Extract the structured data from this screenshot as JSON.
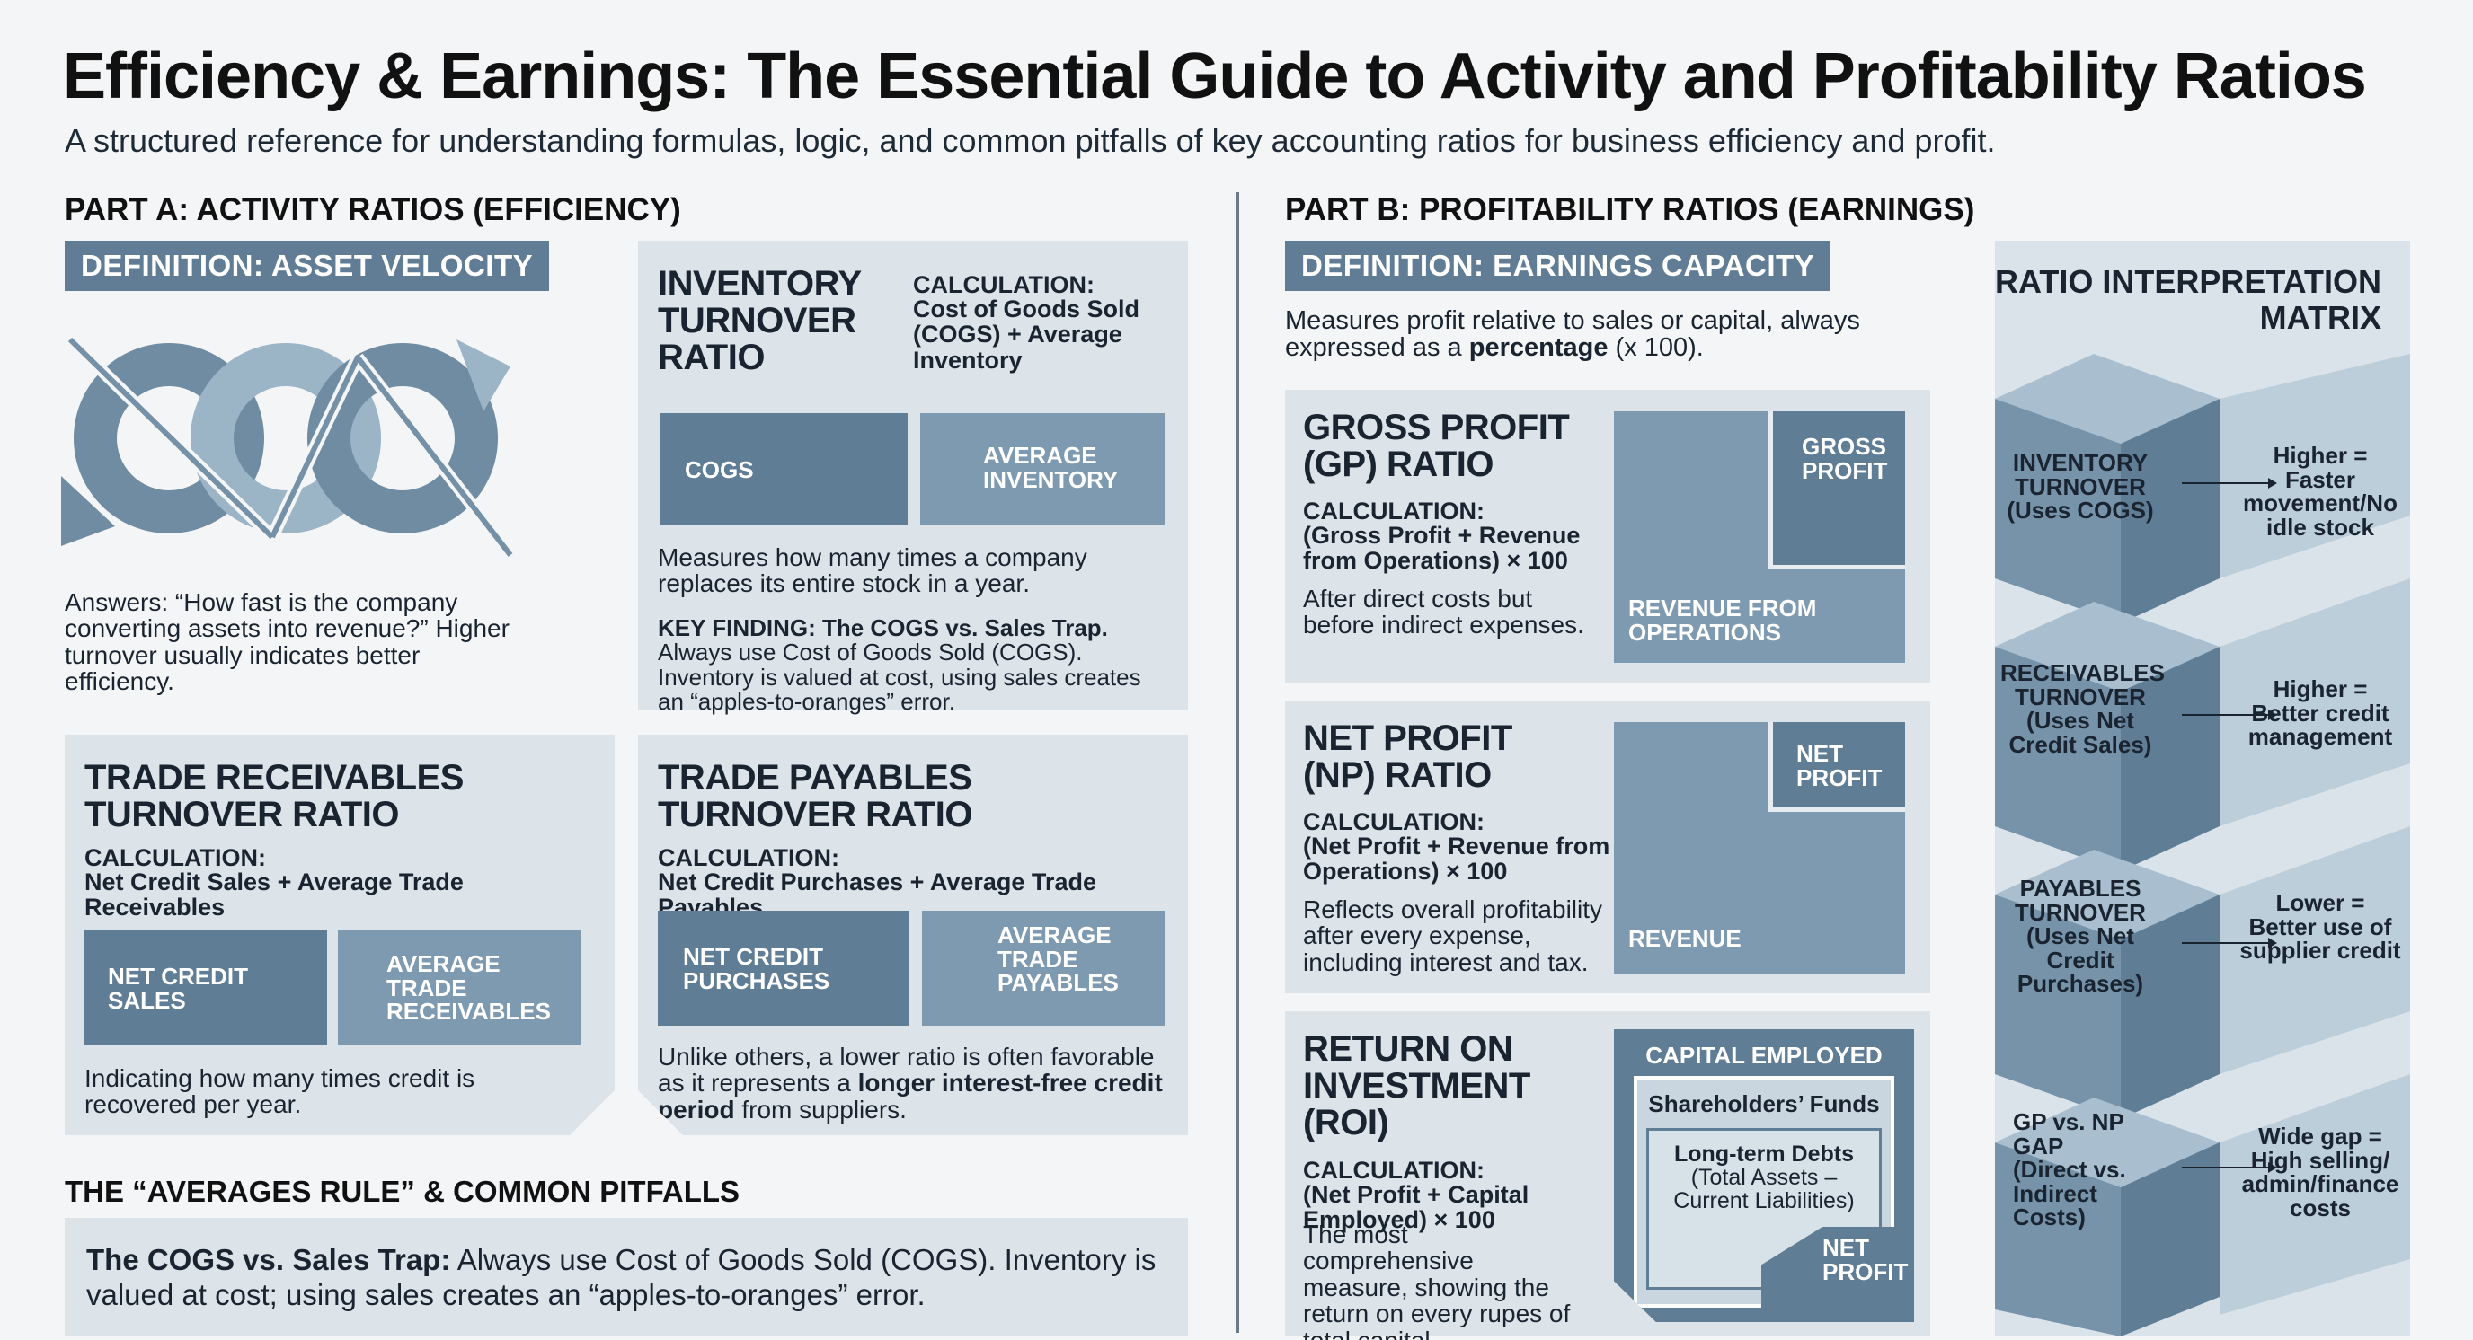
{
  "header": {
    "title": "Efficiency & Earnings: The Essential Guide to Activity and Profitability Ratios",
    "subtitle": "A structured reference for understanding formulas, logic, and common pitfalls of key accounting ratios for business efficiency and profit."
  },
  "part_a": {
    "heading": "PART A: ACTIVITY RATIOS (EFFICIENCY)",
    "definition_badge": "DEFINITION: ASSET VELOCITY",
    "answers_text": "Answers: “How fast is the company converting assets into revenue?” Higher turnover usually indicates better efficiency.",
    "inventory": {
      "title": "INVENTORY TURNOVER RATIO",
      "calc_label": "CALCULATION:",
      "calc_formula": "Cost of Goods Sold (COGS) + Average Inventory",
      "box_left": "COGS",
      "box_right": "AVERAGE INVENTORY",
      "description": "Measures how many times a company replaces its entire stock in a year.",
      "key_finding_bold": "KEY FINDING: The COGS vs. Sales Trap.",
      "key_finding_text": "Always use Cost of Goods Sold (COGS). Inventory is valued at cost, using sales creates an “apples-to-oranges” error."
    },
    "receivables": {
      "title": "TRADE RECEIVABLES TURNOVER RATIO",
      "calc_label": "CALCULATION:",
      "calc_formula": "Net Credit Sales + Average Trade Receivables",
      "box_left": "NET CREDIT SALES",
      "box_right": "AVERAGE TRADE RECEIVABLES",
      "description": "Indicating how many times credit is recovered per year."
    },
    "payables": {
      "title": "TRADE PAYABLES TURNOVER RATIO",
      "calc_label": "CALCULATION:",
      "calc_formula": "Net Credit Purchases + Average Trade Payables",
      "box_left": "NET CREDIT PURCHASES",
      "box_right": "AVERAGE TRADE PAYABLES",
      "description_start": "Unlike others, a lower ratio is often favorable as it represents a",
      "description_bold": "longer interest-free credit period",
      "description_end": "from suppliers."
    },
    "pitfalls": {
      "heading": "THE “AVERAGES RULE” & COMMON PITFALLS",
      "bold": "The COGS vs. Sales Trap:",
      "text": "Always use Cost of Goods Sold (COGS). Inventory is valued at cost; using sales creates an “apples-to-oranges” error."
    }
  },
  "part_b": {
    "heading": "PART B: PROFITABILITY RATIOS (EARNINGS)",
    "definition_badge": "DEFINITION: EARNINGS CAPACITY",
    "definition_text_start": "Measures profit relative to sales or capital, always expressed as a",
    "definition_text_bold": "percentage",
    "definition_text_end": "(x 100).",
    "gross": {
      "title": "GROSS PROFIT (GP) RATIO",
      "calc_label": "CALCULATION:",
      "calc_formula": "(Gross Profit + Revenue from Operations) × 100",
      "description": "After direct costs but before indirect expenses.",
      "inner_box": "GROSS PROFIT",
      "outer_box": "REVENUE FROM OPERATIONS"
    },
    "net": {
      "title": "NET PROFIT (NP) RATIO",
      "calc_label": "CALCULATION:",
      "calc_formula": "(Net Profit + Revenue from Operations) × 100",
      "description": "Reflects overall profitability after every expense, including interest and tax.",
      "inner_box": "NET PROFIT",
      "outer_box": "REVENUE"
    },
    "roi": {
      "title": "RETURN ON INVESTMENT (ROI)",
      "calc_label": "CALCULATION:",
      "calc_formula": "(Net Profit + Capital Employed) × 100",
      "description": "The most comprehensive measure, showing the return on every rupes of total capital.",
      "capital_employed": "CAPITAL EMPLOYED",
      "shareholders_funds": "Shareholders’ Funds",
      "long_term_debts": "Long-term Debts",
      "long_term_detail": "(Total Assets – Current Liabilities)",
      "net_profit": "NET PROFIT"
    }
  },
  "matrix": {
    "title": "RATIO INTERPRETATION MATRIX",
    "rows": [
      {
        "label": "INVENTORY TURNOVER (Uses COGS)",
        "note": "Higher = Faster movement/No idle stock"
      },
      {
        "label": "RECEIVABLES TURNOVER (Uses Net Credit Sales)",
        "note": "Higher = Better credit management"
      },
      {
        "label": "PAYABLES TURNOVER (Uses Net Credit Purchases)",
        "note": "Lower = Better use of supplier credit"
      },
      {
        "label": "GP vs. NP GAP (Direct vs. Indirect Costs)",
        "note": "Wide gap = High selling/ admin/finance costs"
      }
    ]
  },
  "colors": {
    "badge": "#607d95",
    "panel": "#dce4ea",
    "box_dark": "#5f7d95",
    "box_mid": "#7e9ab0"
  }
}
